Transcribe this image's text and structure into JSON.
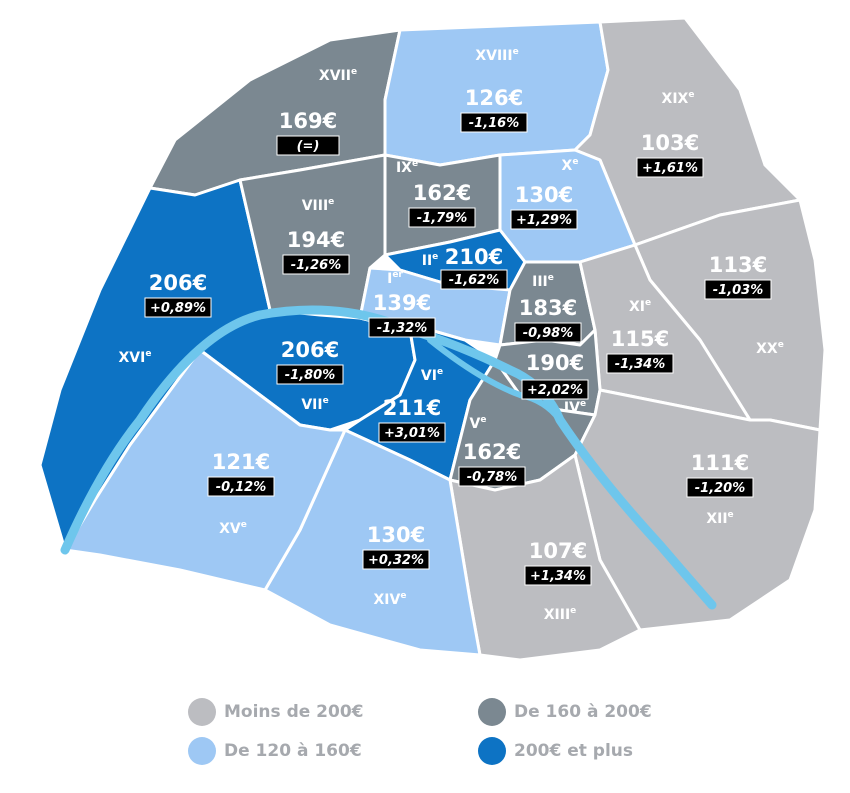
{
  "colors": {
    "moins_200": "#bcbdc1",
    "de_160_200": "#7b8891",
    "de_120_160": "#9ec8f4",
    "plus_200": "#0d73c4",
    "seine": "#6ec6ec"
  },
  "arrondissements": [
    {
      "id": "1",
      "numeral": "I",
      "sup": "er",
      "price": "139€",
      "change": "-1,32%"
    },
    {
      "id": "2",
      "numeral": "II",
      "sup": "e",
      "price": "210€",
      "change": "-1,62%"
    },
    {
      "id": "3",
      "numeral": "III",
      "sup": "e",
      "price": "183€",
      "change": "-0,98%"
    },
    {
      "id": "4",
      "numeral": "IV",
      "sup": "e",
      "price": "190€",
      "change": "+2,02%"
    },
    {
      "id": "5",
      "numeral": "V",
      "sup": "e",
      "price": "162€",
      "change": "-0,78%"
    },
    {
      "id": "6",
      "numeral": "VI",
      "sup": "e",
      "price": "211€",
      "change": "+3,01%"
    },
    {
      "id": "7",
      "numeral": "VII",
      "sup": "e",
      "price": "206€",
      "change": "-1,80%"
    },
    {
      "id": "8",
      "numeral": "VIII",
      "sup": "e",
      "price": "194€",
      "change": "-1,26%"
    },
    {
      "id": "9",
      "numeral": "IX",
      "sup": "e",
      "price": "162€",
      "change": "-1,79%"
    },
    {
      "id": "10",
      "numeral": "X",
      "sup": "e",
      "price": "130€",
      "change": "+1,29%"
    },
    {
      "id": "11",
      "numeral": "XI",
      "sup": "e",
      "price": "115€",
      "change": "-1,34%"
    },
    {
      "id": "12",
      "numeral": "XII",
      "sup": "e",
      "price": "111€",
      "change": "-1,20%"
    },
    {
      "id": "13",
      "numeral": "XIII",
      "sup": "e",
      "price": "107€",
      "change": "+1,34%"
    },
    {
      "id": "14",
      "numeral": "XIV",
      "sup": "e",
      "price": "130€",
      "change": "+0,32%"
    },
    {
      "id": "15",
      "numeral": "XV",
      "sup": "e",
      "price": "121€",
      "change": "-0,12%"
    },
    {
      "id": "16",
      "numeral": "XVI",
      "sup": "e",
      "price": "206€",
      "change": "+0,89%"
    },
    {
      "id": "17",
      "numeral": "XVII",
      "sup": "e",
      "price": "169€",
      "change": "(=)"
    },
    {
      "id": "18",
      "numeral": "XVIII",
      "sup": "e",
      "price": "126€",
      "change": "-1,16%"
    },
    {
      "id": "19",
      "numeral": "XIX",
      "sup": "e",
      "price": "103€",
      "change": "+1,61%"
    },
    {
      "id": "20",
      "numeral": "XX",
      "sup": "e",
      "price": "113€",
      "change": "-1,03%"
    }
  ],
  "legend": [
    {
      "label": "Moins de 200€",
      "color": "#bcbdc1"
    },
    {
      "label": "De 160 à 200€",
      "color": "#7b8891"
    },
    {
      "label": "De 120 à 160€",
      "color": "#9ec8f4"
    },
    {
      "label": "200€ et plus",
      "color": "#0d73c4"
    }
  ]
}
